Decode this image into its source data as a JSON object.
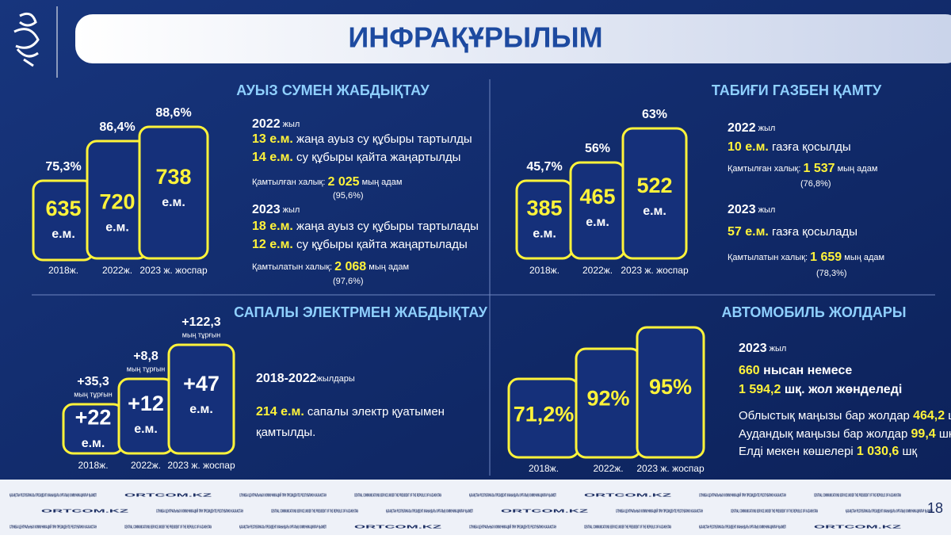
{
  "header": {
    "title": "ИНФРАҚҰРЫЛЫМ",
    "page_number": "18"
  },
  "panels": [
    {
      "title": "АУЫЗ СУМЕН ЖАБДЫҚТАУ",
      "boxes": [
        {
          "top": [
            "75,3%"
          ],
          "value": "635",
          "unit": "е.м.",
          "label": "2018ж."
        },
        {
          "top": [
            "86,4%"
          ],
          "value": "720",
          "unit": "е.м.",
          "label": "2022ж."
        },
        {
          "top": [
            "88,6%"
          ],
          "value": "738",
          "unit": "е.м.",
          "label": "2023 ж. жоспар"
        }
      ],
      "lines": [
        [
          {
            "text": "2022",
            "style": "bold"
          },
          {
            "text": " жыл",
            "style": "small"
          }
        ],
        [
          {
            "text": "13 е.м.",
            "style": "yellow"
          },
          {
            "text": " жаңа ауыз су құбыры тартылды",
            "style": "plain"
          }
        ],
        [
          {
            "text": "14 е.м.",
            "style": "yellow"
          },
          {
            "text": " су құбыры қайта жаңартылды",
            "style": "plain"
          }
        ],
        [
          {
            "text": "Қамтылған халық: ",
            "style": "small"
          },
          {
            "text": "2 025",
            "style": "yellow"
          },
          {
            "text": " мың адам",
            "style": "small"
          }
        ],
        [
          {
            "text": "(95,6%)",
            "style": "small"
          }
        ],
        [
          {
            "text": "2023",
            "style": "bold"
          },
          {
            "text": " жыл",
            "style": "small"
          }
        ],
        [
          {
            "text": "18 е.м.",
            "style": "yellow"
          },
          {
            "text": " жаңа ауыз су құбыры тартылады",
            "style": "plain"
          }
        ],
        [
          {
            "text": "12 е.м.",
            "style": "yellow"
          },
          {
            "text": " су құбыры қайта жаңартылады",
            "style": "plain"
          }
        ],
        [
          {
            "text": "Қамтылатын халық: ",
            "style": "small"
          },
          {
            "text": "2 068",
            "style": "yellow"
          },
          {
            "text": " мың адам",
            "style": "small"
          }
        ],
        [
          {
            "text": "(97,6%)",
            "style": "small"
          }
        ]
      ]
    },
    {
      "title": "ТАБИҒИ ГАЗБЕН ҚАМТУ",
      "boxes": [
        {
          "top": [
            "45,7%"
          ],
          "value": "385",
          "unit": "е.м.",
          "label": "2018ж."
        },
        {
          "top": [
            "56%"
          ],
          "value": "465",
          "unit": "е.м.",
          "label": "2022ж."
        },
        {
          "top": [
            "63%"
          ],
          "value": "522",
          "unit": "е.м.",
          "label": "2023 ж. жоспар"
        }
      ],
      "lines": [
        [
          {
            "text": "2022",
            "style": "bold"
          },
          {
            "text": " жыл",
            "style": "small"
          }
        ],
        [
          {
            "text": "10 е.м.",
            "style": "yellow"
          },
          {
            "text": " газға қосылды",
            "style": "plain"
          }
        ],
        [
          {
            "text": "Қамтылған халық: ",
            "style": "small"
          },
          {
            "text": "1 537",
            "style": "yellow"
          },
          {
            "text": " мың адам",
            "style": "small"
          }
        ],
        [
          {
            "text": "(76,8%)",
            "style": "small"
          }
        ],
        [
          {
            "text": "2023",
            "style": "bold"
          },
          {
            "text": " жыл",
            "style": "small"
          }
        ],
        [
          {
            "text": "57 е.м.",
            "style": "yellow"
          },
          {
            "text": " газға қосылады",
            "style": "plain"
          }
        ],
        [
          {
            "text": "Қамтылатын халық: ",
            "style": "small"
          },
          {
            "text": "1 659",
            "style": "yellow"
          },
          {
            "text": " мың адам",
            "style": "small"
          }
        ],
        [
          {
            "text": "(78,3%)",
            "style": "small"
          }
        ]
      ]
    },
    {
      "title": "САПАЛЫ ЭЛЕКТРМЕН ЖАБДЫҚТАУ",
      "boxes": [
        {
          "top": [
            "+35,3",
            "мың тұрғын"
          ],
          "value": "+22",
          "unit": "е.м.",
          "label": "2018ж."
        },
        {
          "top": [
            "+8,8",
            "мың тұрғын"
          ],
          "value": "+12",
          "unit": "е.м.",
          "label": "2022ж."
        },
        {
          "top": [
            "+122,3",
            "мың тұрғын"
          ],
          "value": "+47",
          "unit": "е.м.",
          "label": "2023 ж. жоспар"
        }
      ],
      "lines": [
        [
          {
            "text": "2018-2022",
            "style": "bold"
          },
          {
            "text": "жылдары",
            "style": "small"
          }
        ],
        [
          {
            "text": "214 е.м.",
            "style": "yellow"
          },
          {
            "text": " сапалы электр қуатымен",
            "style": "plain"
          }
        ],
        [
          {
            "text": "қамтылды.",
            "style": "plain"
          }
        ]
      ]
    },
    {
      "title": "АВТОМОБИЛЬ ЖОЛДАРЫ",
      "boxes": [
        {
          "value": "71,2%",
          "label": "2018ж."
        },
        {
          "value": "92%",
          "label": "2022ж."
        },
        {
          "value": "95%",
          "label": "2023 ж. жоспар"
        }
      ],
      "lines": [
        [
          {
            "text": "2023",
            "style": "bold"
          },
          {
            "text": " жыл",
            "style": "small"
          }
        ],
        [
          {
            "text": "660",
            "style": "yellow"
          },
          {
            "text": " нысан немесе",
            "style": "bold"
          }
        ],
        [
          {
            "text": "1 594,2",
            "style": "yellow"
          },
          {
            "text": " шқ. жол жөнделеді",
            "style": "bold"
          }
        ],
        [
          {
            "text": "Облыстық маңызы бар жолдар ",
            "style": "plain"
          },
          {
            "text": "464,2",
            "style": "yellow"
          },
          {
            "text": " шқ",
            "style": "plain"
          }
        ],
        [
          {
            "text": "Аудандық маңызы бар жолдар ",
            "style": "plain"
          },
          {
            "text": "99,4",
            "style": "yellow"
          },
          {
            "text": " шқ",
            "style": "plain"
          }
        ],
        [
          {
            "text": "Елді мекен көшелері ",
            "style": "plain"
          },
          {
            "text": "1 030,6",
            "style": "yellow"
          },
          {
            "text": " шқ",
            "style": "plain"
          }
        ]
      ]
    }
  ],
  "footer": {
    "texts": [
      "ҚАЗАҚСТАН РЕСПУБЛИКАСЫ ПРЕЗИДЕНТІ ЖАНЫНДАҒЫ ОРТАЛЫҚ КОММУНИКАЦИЯЛАР ҚЫЗМЕТІ",
      "ORTCOM.KZ",
      "СЛУЖБА ЦЕНТРАЛЬНЫХ КОММУНИКАЦИЙ ПРИ ПРЕЗИДЕНТЕ РЕСПУБЛИКИ КАЗАХСТАН",
      "CENTRAL COMMUNICATIONS SERVICE UNDER THE PRESIDENT OF THE REPUBLIC OF KAZAKHSTAN"
    ]
  }
}
